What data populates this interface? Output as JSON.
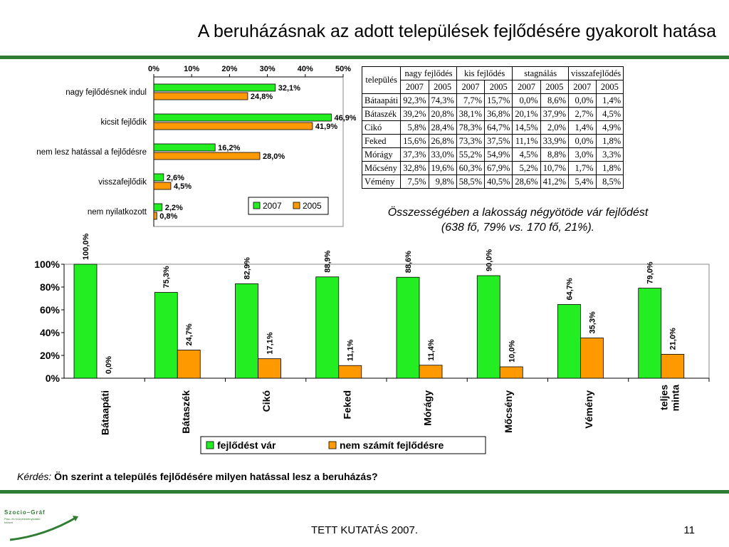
{
  "slide": {
    "title": "A beruházásnak az adott települések fejlődésére gyakorolt hatása",
    "summary": "Összességében a lakosság négyötöde vár fejlődést (638 fő, 79% vs. 170 fő, 21%).",
    "question_label": "Kérdés:",
    "question_text": "Ön szerint a település fejlődésére milyen hatással lesz a beruházás?",
    "footer": "TETT KUTATÁS 2007.",
    "page": "11",
    "logo": {
      "name": "Szocio-Gráf",
      "line1": "Piac- és Közvéleménykutató",
      "line2": "Intézet"
    }
  },
  "colors": {
    "green": "#22ee22",
    "orange": "#ff9900",
    "rule": "#2e7d32"
  },
  "table": {
    "headers": [
      "település",
      "nagy fejlődés",
      "kis fejlődés",
      "stagnálás",
      "visszafejlődés"
    ],
    "years": [
      "2007",
      "2005",
      "2007",
      "2005",
      "2007",
      "2005",
      "2007",
      "2005"
    ],
    "rows": [
      {
        "name": "Bátaapáti",
        "values": [
          "92,3%",
          "74,3%",
          "7,7%",
          "15,7%",
          "0,0%",
          "8,6%",
          "0,0%",
          "1,4%"
        ]
      },
      {
        "name": "Bátaszék",
        "values": [
          "39,2%",
          "20,8%",
          "38,1%",
          "36,8%",
          "20,1%",
          "37,9%",
          "2,7%",
          "4,5%"
        ]
      },
      {
        "name": "Cikó",
        "values": [
          "5,8%",
          "28,4%",
          "78,3%",
          "64,7%",
          "14,5%",
          "2,0%",
          "1,4%",
          "4,9%"
        ]
      },
      {
        "name": "Feked",
        "values": [
          "15,6%",
          "26,8%",
          "73,3%",
          "37,5%",
          "11,1%",
          "33,9%",
          "0,0%",
          "1,8%"
        ]
      },
      {
        "name": "Mórágy",
        "values": [
          "37,3%",
          "33,0%",
          "55,2%",
          "54,9%",
          "4,5%",
          "8,8%",
          "3,0%",
          "3,3%"
        ]
      },
      {
        "name": "Mőcsény",
        "values": [
          "32,8%",
          "19,6%",
          "60,3%",
          "67,9%",
          "5,2%",
          "10,7%",
          "1,7%",
          "1,8%"
        ]
      },
      {
        "name": "Vémény",
        "values": [
          "7,5%",
          "9,8%",
          "58,5%",
          "40,5%",
          "28,6%",
          "41,2%",
          "5,4%",
          "8,5%"
        ]
      }
    ]
  },
  "chart_data": [
    {
      "type": "bar",
      "orientation": "horizontal",
      "categories": [
        "nagy fejlődésnek indul",
        "kicsit fejlődik",
        "nem lesz hatással a fejlődésre",
        "visszafejlődik",
        "nem nyilatkozott"
      ],
      "series": [
        {
          "name": "2007",
          "values": [
            32.1,
            46.9,
            16.2,
            2.6,
            2.2
          ],
          "labels": [
            "32,1%",
            "46,9%",
            "16,2%",
            "2,6%",
            "2,2%"
          ]
        },
        {
          "name": "2005",
          "values": [
            24.8,
            41.9,
            28.0,
            4.5,
            0.8
          ],
          "labels": [
            "24,8%",
            "41,9%",
            "28,0%",
            "4,5%",
            "0,8%"
          ]
        }
      ],
      "xlim": [
        0,
        50
      ],
      "xticks": [
        "0%",
        "10%",
        "20%",
        "30%",
        "40%",
        "50%"
      ],
      "grid": false,
      "legend": "bottom-right"
    },
    {
      "type": "bar",
      "categories": [
        "Bátaapáti",
        "Bátaszék",
        "Cikó",
        "Feked",
        "Mórágy",
        "Mőcsény",
        "Vémény",
        "teljes minta"
      ],
      "series": [
        {
          "name": "fejlődést vár",
          "values": [
            100.0,
            75.3,
            82.9,
            88.9,
            88.6,
            90.0,
            64.7,
            79.0
          ],
          "labels": [
            "100,0%",
            "75,3%",
            "82,9%",
            "88,9%",
            "88,6%",
            "90,0%",
            "64,7%",
            "79,0%"
          ]
        },
        {
          "name": "nem számít fejlődésre",
          "values": [
            0.0,
            24.7,
            17.1,
            11.1,
            11.4,
            10.0,
            35.3,
            21.0
          ],
          "labels": [
            "0,0%",
            "24,7%",
            "17,1%",
            "11,1%",
            "11,4%",
            "10,0%",
            "35,3%",
            "21,0%"
          ]
        }
      ],
      "ylim": [
        0,
        100
      ],
      "yticks": [
        "0%",
        "20%",
        "40%",
        "60%",
        "80%",
        "100%"
      ],
      "grid": false,
      "legend": "bottom"
    }
  ]
}
